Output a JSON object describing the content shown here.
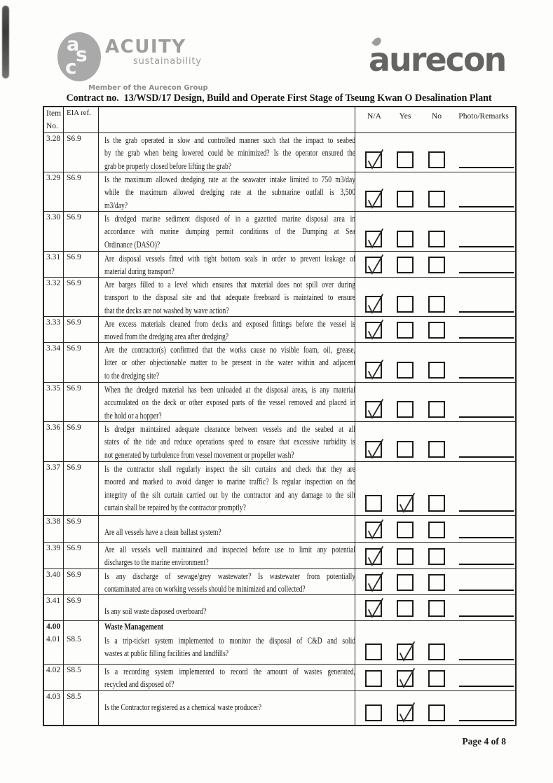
{
  "header": {
    "acuity": {
      "monogram": [
        "a",
        "s",
        "c"
      ],
      "name": "ACUITY",
      "tagline": "sustainability",
      "member": "Member of the Aurecon Group"
    },
    "aurecon": {
      "wordmark": "aurecon"
    }
  },
  "title": "Contract no.  13/WSD/17 Design, Build and Operate First Stage of Tseung Kwan O Desalination Plant",
  "table": {
    "columns": {
      "item_line1": "Item",
      "item_line2": "No.",
      "eia": "EIA ref.",
      "na": "N/A",
      "yes": "Yes",
      "no": "No",
      "photo": "Photo/Remarks"
    },
    "rows": [
      {
        "item": "3.28",
        "ref": "S6.9",
        "checked": "na",
        "lines": [
          "Is the grab operated in slow and controlled manner such that the impact to seabed",
          "by the grab when being lowered could be minimized? Is the operator ensured the",
          "grab be properly closed before lifting the grab?"
        ]
      },
      {
        "item": "3.29",
        "ref": "S6.9",
        "checked": "na",
        "lines": [
          "Is the maximum allowed dredging rate at the seawater intake limited to 750 m3/day",
          "while the maximum allowed dredging rate at the submarine outfall is 3,500",
          "m3/day?"
        ]
      },
      {
        "item": "3.30",
        "ref": "S6.9",
        "checked": "na",
        "lines": [
          "Is dredged marine sediment disposed of in a gazetted marine disposal area in",
          "accordance with marine dumping permit conditions of the Dumping at Sea",
          "Ordinance (DASO)?"
        ]
      },
      {
        "item": "3.31",
        "ref": "S6.9",
        "checked": "na",
        "lines": [
          "Are disposal vessels fitted with tight bottom seals in order to prevent leakage of",
          "material during transport?"
        ]
      },
      {
        "item": "3.32",
        "ref": "S6.9",
        "checked": "na",
        "lines": [
          "Are barges filled to a level which ensures that material does not spill over during",
          "transport to the disposal site and that adequate freeboard is maintained to ensure",
          "that the decks are not washed by wave action?"
        ]
      },
      {
        "item": "3.33",
        "ref": "S6.9",
        "checked": "na",
        "lines": [
          "Are excess materials cleaned from decks and exposed fittings before the vessel is",
          "moved from the dredging area after dredging?"
        ]
      },
      {
        "item": "3.34",
        "ref": "S6.9",
        "checked": "na",
        "lines": [
          "Are the contractor(s) confirmed that the works cause no visible foam, oil, grease,",
          "litter or other objectionable matter to be present in the water within and adjacent",
          "to the dredging site?"
        ]
      },
      {
        "item": "3.35",
        "ref": "S6.9",
        "checked": "na",
        "lines": [
          "When the dredged material has been unloaded at the disposal areas, is any material",
          "accumulated on the deck or other exposed parts of the vessel removed and placed in",
          "the hold or a hopper?"
        ]
      },
      {
        "item": "3.36",
        "ref": "S6.9",
        "checked": "na",
        "lines": [
          "Is dredger maintained adequate clearance between vessels and the seabed at all",
          "states of the tide and reduce operations speed to ensure that excessive turbidity is",
          "not generated by turbulence from vessel movement or propeller wash?"
        ]
      },
      {
        "item": "3.37",
        "ref": "S6.9",
        "checked": "yes",
        "lines": [
          "Is the contractor shall regularly inspect the silt curtains and check that they are",
          "moored and marked to avoid danger to marine traffic? Is regular inspection on the",
          "integrity of the silt curtain carried out by the contractor and any damage to the silt",
          "curtain shall be repaired by the contractor promptly?"
        ]
      },
      {
        "item": "3.38",
        "ref": "S6.9",
        "checked": "na",
        "lines": [
          "Are all vessels have a clean ballast system?"
        ]
      },
      {
        "item": "3.39",
        "ref": "S6.9",
        "checked": "na",
        "lines": [
          "Are all vessels well maintained and inspected before use to limit any potential",
          "discharges to the marine environment?"
        ]
      },
      {
        "item": "3.40",
        "ref": "S6.9",
        "checked": "na",
        "lines": [
          "Is any discharge of sewage/grey wastewater? Is wastewater from potentially",
          "contaminated area on working vessels should be minimized and collected?"
        ]
      },
      {
        "item": "3.41",
        "ref": "S6.9",
        "checked": "na",
        "lines": [
          "Is any soil waste disposed overboard?"
        ]
      },
      {
        "item": "4.00",
        "ref": "",
        "checked": null,
        "section": true,
        "lines": [
          "Waste Management"
        ]
      },
      {
        "item": "4.01",
        "ref": "S8.5",
        "checked": "yes",
        "lines": [
          "Is a trip-ticket system implemented to monitor the disposal of C&D and solid",
          "wastes at public filling facilities and landfills?"
        ]
      },
      {
        "item": "4.02",
        "ref": "S8.5",
        "checked": "yes",
        "lines": [
          "Is a recording system implemented to record the amount of wastes generated,",
          "recycled and disposed of?"
        ]
      },
      {
        "item": "4.03",
        "ref": "S8.5",
        "checked": "yes",
        "lines": [
          "Is the Contractor registered as a chemical waste producer?"
        ]
      }
    ]
  },
  "footer": {
    "page_label": "Page 4 of 8"
  },
  "colors": {
    "ink": "#1b1b1b",
    "acuity_gray": "#9e9e9e",
    "aurecon_gray": "#646464",
    "paper": "#fdfdfb"
  }
}
